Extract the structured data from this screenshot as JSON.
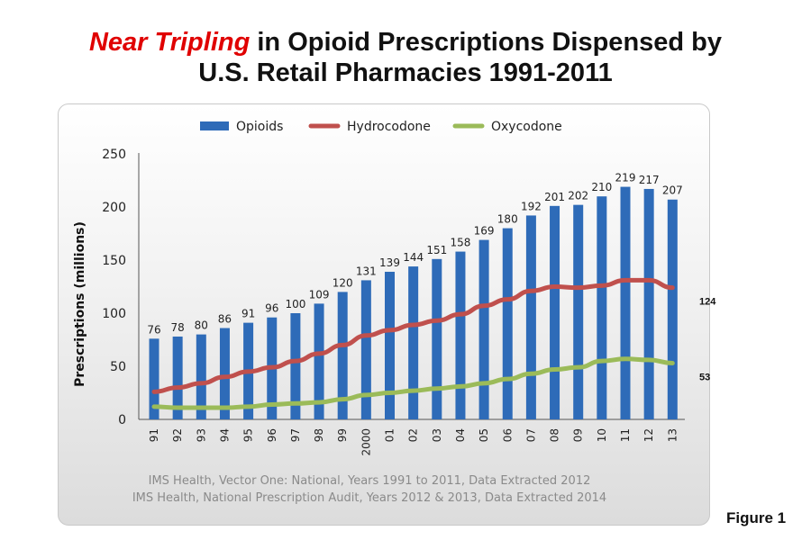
{
  "title": {
    "emphasis": "Near Tripling",
    "rest_line1": " in Opioid Prescriptions Dispensed by",
    "line2": "U.S. Retail Pharmacies 1991-2011"
  },
  "source_lines": [
    "IMS Health, Vector One: National, Years 1991 to 2011, Data Extracted 2012",
    "IMS Health, National Prescription Audit, Years 2012 & 2013, Data Extracted 2014"
  ],
  "figure_label": "Figure 1",
  "colors": {
    "opioids": "#2e6bb8",
    "hydrocodone": "#c0504d",
    "oxycodone": "#9bbb59",
    "title_emphasis": "#e00000"
  },
  "chart_data": {
    "type": "bar",
    "ylabel": "Prescriptions (millions)",
    "xlabel": "",
    "ylim": [
      0,
      250
    ],
    "yticks": [
      0,
      50,
      100,
      150,
      200,
      250
    ],
    "grid": false,
    "legend_position": "top",
    "categories": [
      "91",
      "92",
      "93",
      "94",
      "95",
      "96",
      "97",
      "98",
      "99",
      "2000",
      "01",
      "02",
      "03",
      "04",
      "05",
      "06",
      "07",
      "08",
      "09",
      "10",
      "11",
      "12",
      "13"
    ],
    "series": [
      {
        "name": "Opioids",
        "kind": "bar",
        "values": [
          76,
          78,
          80,
          86,
          91,
          96,
          100,
          109,
          120,
          131,
          139,
          144,
          151,
          158,
          169,
          180,
          192,
          201,
          202,
          210,
          219,
          217,
          207
        ]
      },
      {
        "name": "Hydrocodone",
        "kind": "line",
        "values": [
          26,
          30,
          34,
          40,
          45,
          49,
          55,
          62,
          70,
          79,
          84,
          89,
          93,
          99,
          107,
          113,
          121,
          125,
          124,
          126,
          131,
          131,
          124
        ],
        "end_label": "124"
      },
      {
        "name": "Oxycodone",
        "kind": "line",
        "values": [
          12,
          11,
          11,
          11,
          12,
          14,
          15,
          16,
          19,
          23,
          25,
          27,
          29,
          31,
          34,
          38,
          43,
          47,
          49,
          55,
          57,
          56,
          53
        ],
        "end_label": "53"
      }
    ]
  }
}
